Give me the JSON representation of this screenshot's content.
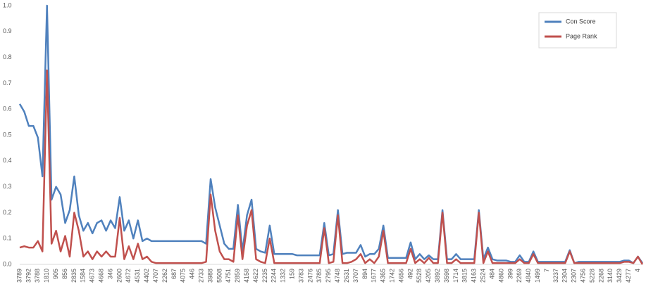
{
  "chart_data": {
    "type": "line",
    "categories": [
      "3789",
      null,
      "3792",
      null,
      "3788",
      null,
      "1810",
      null,
      "905",
      null,
      "856",
      null,
      "2835",
      null,
      "1584",
      null,
      "4673",
      null,
      "4668",
      null,
      "346",
      null,
      "2600",
      null,
      "4672",
      null,
      "4531",
      null,
      "4402",
      null,
      "4707",
      null,
      "2262",
      null,
      "687",
      null,
      "4075",
      null,
      "446",
      null,
      "2733",
      null,
      "3988",
      null,
      "5508",
      null,
      "4751",
      null,
      "2859",
      null,
      "4158",
      null,
      "4622",
      null,
      "2235",
      null,
      "2244",
      null,
      "1332",
      null,
      "159",
      null,
      "3783",
      null,
      "2476",
      null,
      "3785",
      null,
      "2795",
      null,
      "4748",
      null,
      "2631",
      null,
      "3707",
      null,
      "894",
      null,
      "1677",
      null,
      "4365",
      null,
      "1742",
      null,
      "4656",
      null,
      "492",
      null,
      "5528",
      null,
      "4205",
      null,
      "3892",
      null,
      "3598",
      null,
      "1714",
      null,
      "3815",
      null,
      "4163",
      null,
      "2524",
      null,
      "484",
      null,
      "4860",
      null,
      "399",
      null,
      "2269",
      null,
      "4840",
      null,
      "1499",
      null,
      "7",
      null,
      "3237",
      null,
      "2304",
      null,
      "2307",
      null,
      "4756",
      null,
      "5228",
      null,
      "2268",
      null,
      "3140",
      null,
      "3429",
      null,
      "4277",
      null,
      "4",
      null
    ],
    "series": [
      {
        "name": "Con Score",
        "color": "#4f81bd",
        "values": [
          0.62,
          0.59,
          0.535,
          0.535,
          0.49,
          0.34,
          1.0,
          0.25,
          0.3,
          0.27,
          0.16,
          0.21,
          0.34,
          0.19,
          0.13,
          0.16,
          0.12,
          0.16,
          0.17,
          0.13,
          0.17,
          0.14,
          0.26,
          0.13,
          0.17,
          0.1,
          0.17,
          0.09,
          0.1,
          0.09,
          0.09,
          0.09,
          0.09,
          0.09,
          0.09,
          0.09,
          0.09,
          0.09,
          0.09,
          0.09,
          0.09,
          0.08,
          0.33,
          0.22,
          0.15,
          0.08,
          0.06,
          0.06,
          0.23,
          0.05,
          0.19,
          0.25,
          0.06,
          0.05,
          0.045,
          0.15,
          0.04,
          0.04,
          0.04,
          0.04,
          0.04,
          0.035,
          0.035,
          0.035,
          0.035,
          0.035,
          0.035,
          0.16,
          0.035,
          0.04,
          0.21,
          0.04,
          0.045,
          0.045,
          0.045,
          0.075,
          0.03,
          0.04,
          0.04,
          0.06,
          0.15,
          0.025,
          0.025,
          0.025,
          0.025,
          0.025,
          0.085,
          0.02,
          0.04,
          0.02,
          0.035,
          0.02,
          0.02,
          0.21,
          0.02,
          0.02,
          0.04,
          0.02,
          0.02,
          0.02,
          0.02,
          0.21,
          0.02,
          0.065,
          0.02,
          0.015,
          0.015,
          0.015,
          0.01,
          0.01,
          0.035,
          0.01,
          0.01,
          0.05,
          0.01,
          0.01,
          0.01,
          0.01,
          0.01,
          0.01,
          0.01,
          0.055,
          0.005,
          0.01,
          0.01,
          0.01,
          0.01,
          0.01,
          0.01,
          0.01,
          0.01,
          0.01,
          0.01,
          0.015,
          0.015,
          0.005,
          0.03,
          0.005
        ]
      },
      {
        "name": "Page Rank",
        "color": "#c0504d",
        "values": [
          0.065,
          0.07,
          0.065,
          0.065,
          0.09,
          0.05,
          0.75,
          0.08,
          0.13,
          0.05,
          0.11,
          0.03,
          0.2,
          0.13,
          0.03,
          0.05,
          0.02,
          0.05,
          0.03,
          0.05,
          0.03,
          0.03,
          0.18,
          0.02,
          0.07,
          0.02,
          0.08,
          0.02,
          0.03,
          0.01,
          0.005,
          0.005,
          0.005,
          0.005,
          0.005,
          0.005,
          0.005,
          0.005,
          0.005,
          0.005,
          0.005,
          0.01,
          0.27,
          0.13,
          0.05,
          0.02,
          0.02,
          0.01,
          0.19,
          0.02,
          0.15,
          0.21,
          0.02,
          0.01,
          0.005,
          0.1,
          0.005,
          0.005,
          0.005,
          0.005,
          0.005,
          0.005,
          0.005,
          0.005,
          0.005,
          0.005,
          0.005,
          0.14,
          0.005,
          0.01,
          0.19,
          0.005,
          0.005,
          0.01,
          0.02,
          0.04,
          0.005,
          0.02,
          0.005,
          0.03,
          0.13,
          0.005,
          0.005,
          0.005,
          0.005,
          0.005,
          0.06,
          0.005,
          0.02,
          0.005,
          0.025,
          0.005,
          0.005,
          0.2,
          0.005,
          0.005,
          0.02,
          0.005,
          0.005,
          0.005,
          0.005,
          0.2,
          0.005,
          0.05,
          0.005,
          0.005,
          0.005,
          0.005,
          0.005,
          0.005,
          0.02,
          0.005,
          0.005,
          0.04,
          0.005,
          0.005,
          0.005,
          0.005,
          0.005,
          0.005,
          0.005,
          0.05,
          0.005,
          0.005,
          0.005,
          0.005,
          0.005,
          0.005,
          0.005,
          0.005,
          0.005,
          0.005,
          0.005,
          0.01,
          0.01,
          0.005,
          0.03,
          0
        ]
      }
    ],
    "ylim": [
      0,
      1
    ],
    "yticks": [
      {
        "value": 0,
        "label": "0.0"
      },
      0.1,
      0.2,
      0.3,
      0.4,
      0.5,
      0.6,
      0.7,
      0.8,
      0.9,
      {
        "value": 1,
        "label": "1.0"
      }
    ],
    "grid": false,
    "legend": "top-right"
  }
}
